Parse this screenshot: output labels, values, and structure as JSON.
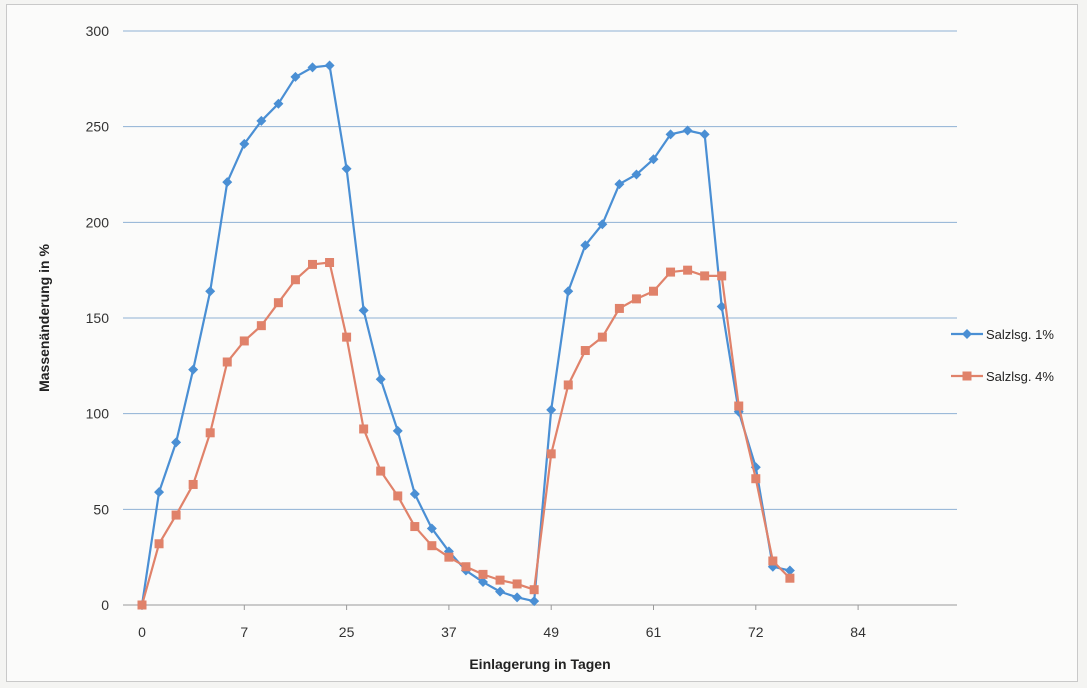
{
  "chart_data": {
    "type": "line",
    "xlabel": "Einlagerung in Tagen",
    "ylabel": "Massenänderung in %",
    "ylim": [
      0,
      300
    ],
    "yticks": [
      0,
      50,
      100,
      150,
      200,
      250,
      300
    ],
    "xtick_labels": [
      "0",
      "7",
      "25",
      "37",
      "49",
      "61",
      "72",
      "84"
    ],
    "grid": "horizontal",
    "legend_position": "right",
    "series": [
      {
        "name": "Salzlsg. 1%",
        "color": "#4a8fd4",
        "marker": "diamond",
        "values": [
          0,
          59,
          85,
          123,
          164,
          221,
          241,
          253,
          262,
          276,
          281,
          282,
          228,
          154,
          118,
          91,
          58,
          40,
          28,
          18,
          12,
          7,
          4,
          2,
          102,
          164,
          188,
          199,
          220,
          225,
          233,
          246,
          248,
          246,
          156,
          101,
          72,
          20,
          18
        ]
      },
      {
        "name": "Salzlsg. 4%",
        "color": "#e0826a",
        "marker": "square",
        "values": [
          0,
          32,
          47,
          63,
          90,
          127,
          138,
          146,
          158,
          170,
          178,
          179,
          140,
          92,
          70,
          57,
          41,
          31,
          25,
          20,
          16,
          13,
          11,
          8,
          79,
          115,
          133,
          140,
          155,
          160,
          164,
          174,
          175,
          172,
          172,
          104,
          66,
          23,
          14
        ]
      }
    ]
  }
}
